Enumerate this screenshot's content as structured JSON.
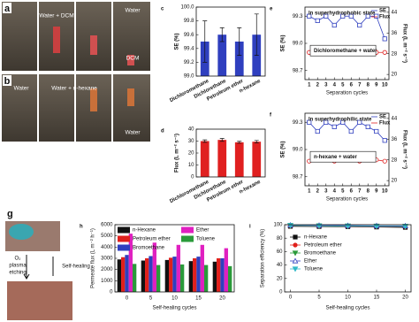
{
  "photos": {
    "a": {
      "label": "a",
      "texts": [
        "Water + DCM",
        "Water",
        "DCM"
      ]
    },
    "b": {
      "label": "b",
      "texts": [
        "Water",
        "Water + n-hexane",
        "Water"
      ]
    },
    "g": {
      "label": "g",
      "texts": [
        "O₂",
        "plasma",
        "etching",
        "Self-healing"
      ]
    }
  },
  "chart_data": [
    {
      "type": "bar",
      "label": "c",
      "ylabel": "SE (%)",
      "categories": [
        "Dichloromethane",
        "Dichlorethane",
        "Petroleum ether",
        "n-hexane"
      ],
      "values": [
        99.5,
        99.6,
        99.5,
        99.6
      ],
      "errors": [
        0.3,
        0.1,
        0.2,
        0.3
      ],
      "color": "#2f3fbf",
      "ylim": [
        99.0,
        100.0
      ],
      "yticks": [
        {
          "value": 99,
          "label": "99.0"
        },
        99.2,
        99.4,
        99.6,
        99.8,
        {
          "value": 100,
          "label": "100.0"
        }
      ]
    },
    {
      "type": "bar",
      "label": "d",
      "ylabel": "Flux (L m⁻² s⁻¹)",
      "categories": [
        "Dichloromethane",
        "Dichlorethane",
        "Petroleum ether",
        "n-hexane"
      ],
      "values": [
        30,
        31,
        29,
        29.5
      ],
      "errors": [
        1,
        1.2,
        0.8,
        1
      ],
      "color": "#e02020",
      "ylim": [
        0,
        40
      ],
      "yticks": [
        0,
        10,
        20,
        30,
        40
      ]
    },
    {
      "type": "line",
      "label": "e",
      "xlabel": "Separation cycles",
      "ylabel": "SE (%)",
      "y2label": "Flux (L m⁻² s⁻¹)",
      "notes": [
        "In superhydrophobic state",
        "Dichloromethane + water"
      ],
      "x": [
        1,
        2,
        3,
        4,
        5,
        6,
        7,
        8,
        9,
        10
      ],
      "xlim": [
        0.5,
        10.5
      ],
      "xticks": [
        1,
        2,
        3,
        4,
        5,
        6,
        7,
        8,
        9,
        10
      ],
      "ylim": [
        98.6,
        99.4
      ],
      "yticks": [
        98.7,
        {
          "value": 99,
          "label": "99.0"
        },
        99.3
      ],
      "y2lim": [
        18,
        46
      ],
      "y2ticks": [
        20,
        28,
        36,
        44
      ],
      "y2color": "#e02020",
      "series": [
        {
          "name": "SE",
          "color": "#2f3fbf",
          "marker": "square",
          "values": [
            99.3,
            99.25,
            99.3,
            99.2,
            99.3,
            99.3,
            99.2,
            99.3,
            99.3,
            99.05
          ]
        },
        {
          "name": "Flux",
          "color": "#e02020",
          "marker": "circle",
          "axis": "y2",
          "values": [
            28.5,
            29.5,
            29,
            29.5,
            28.5,
            29,
            28,
            29,
            28.5,
            28.5
          ]
        }
      ]
    },
    {
      "type": "line",
      "label": "f",
      "xlabel": "Separation cycles",
      "ylabel": "SE (%)",
      "y2label": "Flux (L m⁻² s⁻¹)",
      "notes": [
        "In superhydrophilic state",
        "n-hexane + water"
      ],
      "x": [
        1,
        2,
        3,
        4,
        5,
        6,
        7,
        8,
        9,
        10
      ],
      "xlim": [
        0.5,
        10.5
      ],
      "xticks": [
        1,
        2,
        3,
        4,
        5,
        6,
        7,
        8,
        9,
        10
      ],
      "ylim": [
        98.6,
        99.4
      ],
      "yticks": [
        98.7,
        {
          "value": 99,
          "label": "99.0"
        },
        99.3
      ],
      "y2lim": [
        18,
        46
      ],
      "y2ticks": [
        20,
        28,
        36,
        44
      ],
      "y2color": "#e02020",
      "series": [
        {
          "name": "SE",
          "color": "#2f3fbf",
          "marker": "square",
          "values": [
            99.3,
            99.2,
            99.3,
            99.25,
            99.3,
            99.2,
            99.3,
            99.25,
            99.2,
            99.1
          ]
        },
        {
          "name": "Flux",
          "color": "#e02020",
          "marker": "circle",
          "axis": "y2",
          "values": [
            27.5,
            28.5,
            28,
            27.5,
            29,
            28,
            27.5,
            29,
            28,
            27.5
          ]
        }
      ]
    },
    {
      "type": "grouped_bar",
      "label": "h",
      "xlabel": "Self-healing cycles",
      "ylabel": "Permeate flux (L m⁻² h⁻¹)",
      "categories": [
        "0",
        "5",
        "10",
        "15",
        "20"
      ],
      "ylim": [
        0,
        6000
      ],
      "yticks": [
        0,
        1000,
        2000,
        3000,
        4000,
        5000,
        6000
      ],
      "series": [
        {
          "name": "n-Hexane",
          "color": "#111111",
          "values": [
            2900,
            2800,
            2850,
            2750,
            2700
          ]
        },
        {
          "name": "Petroleum ether",
          "color": "#e0201c",
          "values": [
            3100,
            3000,
            3050,
            3000,
            3000
          ]
        },
        {
          "name": "Bromoethane",
          "color": "#2f3fbf",
          "values": [
            3300,
            3200,
            3150,
            3150,
            3000
          ]
        },
        {
          "name": "Ether",
          "color": "#e020c0",
          "values": [
            5200,
            4400,
            4200,
            4200,
            3900
          ]
        },
        {
          "name": "Toluene",
          "color": "#2a9a3a",
          "values": [
            2500,
            2400,
            2450,
            2400,
            2300
          ]
        }
      ]
    },
    {
      "type": "marker_line",
      "label": "i",
      "xlabel": "Self-healing cycles",
      "ylabel": "Separation efficiency (%)",
      "x": [
        0,
        5,
        10,
        15,
        20
      ],
      "xlim": [
        -1,
        21
      ],
      "xticks": [
        0,
        5,
        10,
        15,
        20
      ],
      "ylim": [
        0,
        100
      ],
      "yticks": [
        0,
        20,
        40,
        60,
        80,
        100
      ],
      "series": [
        {
          "name": "n-Hexane",
          "color": "#111111",
          "marker": "square",
          "values": [
            97.5,
            97.2,
            97,
            96.5,
            96
          ]
        },
        {
          "name": "Petroleum ether",
          "color": "#e0201c",
          "marker": "circle",
          "values": [
            98.5,
            98,
            97.8,
            97.5,
            97.2
          ]
        },
        {
          "name": "Bromoethane",
          "color": "#2a9a3a",
          "marker": "triangle-down",
          "values": [
            99,
            98.5,
            98.3,
            98,
            97.8
          ]
        },
        {
          "name": "Ether",
          "color": "#2f3fbf",
          "marker": "triangle",
          "values": [
            99.3,
            99,
            98.6,
            98.4,
            98.2
          ]
        },
        {
          "name": "Toluene",
          "color": "#30b8c8",
          "marker": "triangle-down",
          "values": [
            98.8,
            98.3,
            98,
            97.8,
            97.5
          ]
        }
      ]
    }
  ]
}
